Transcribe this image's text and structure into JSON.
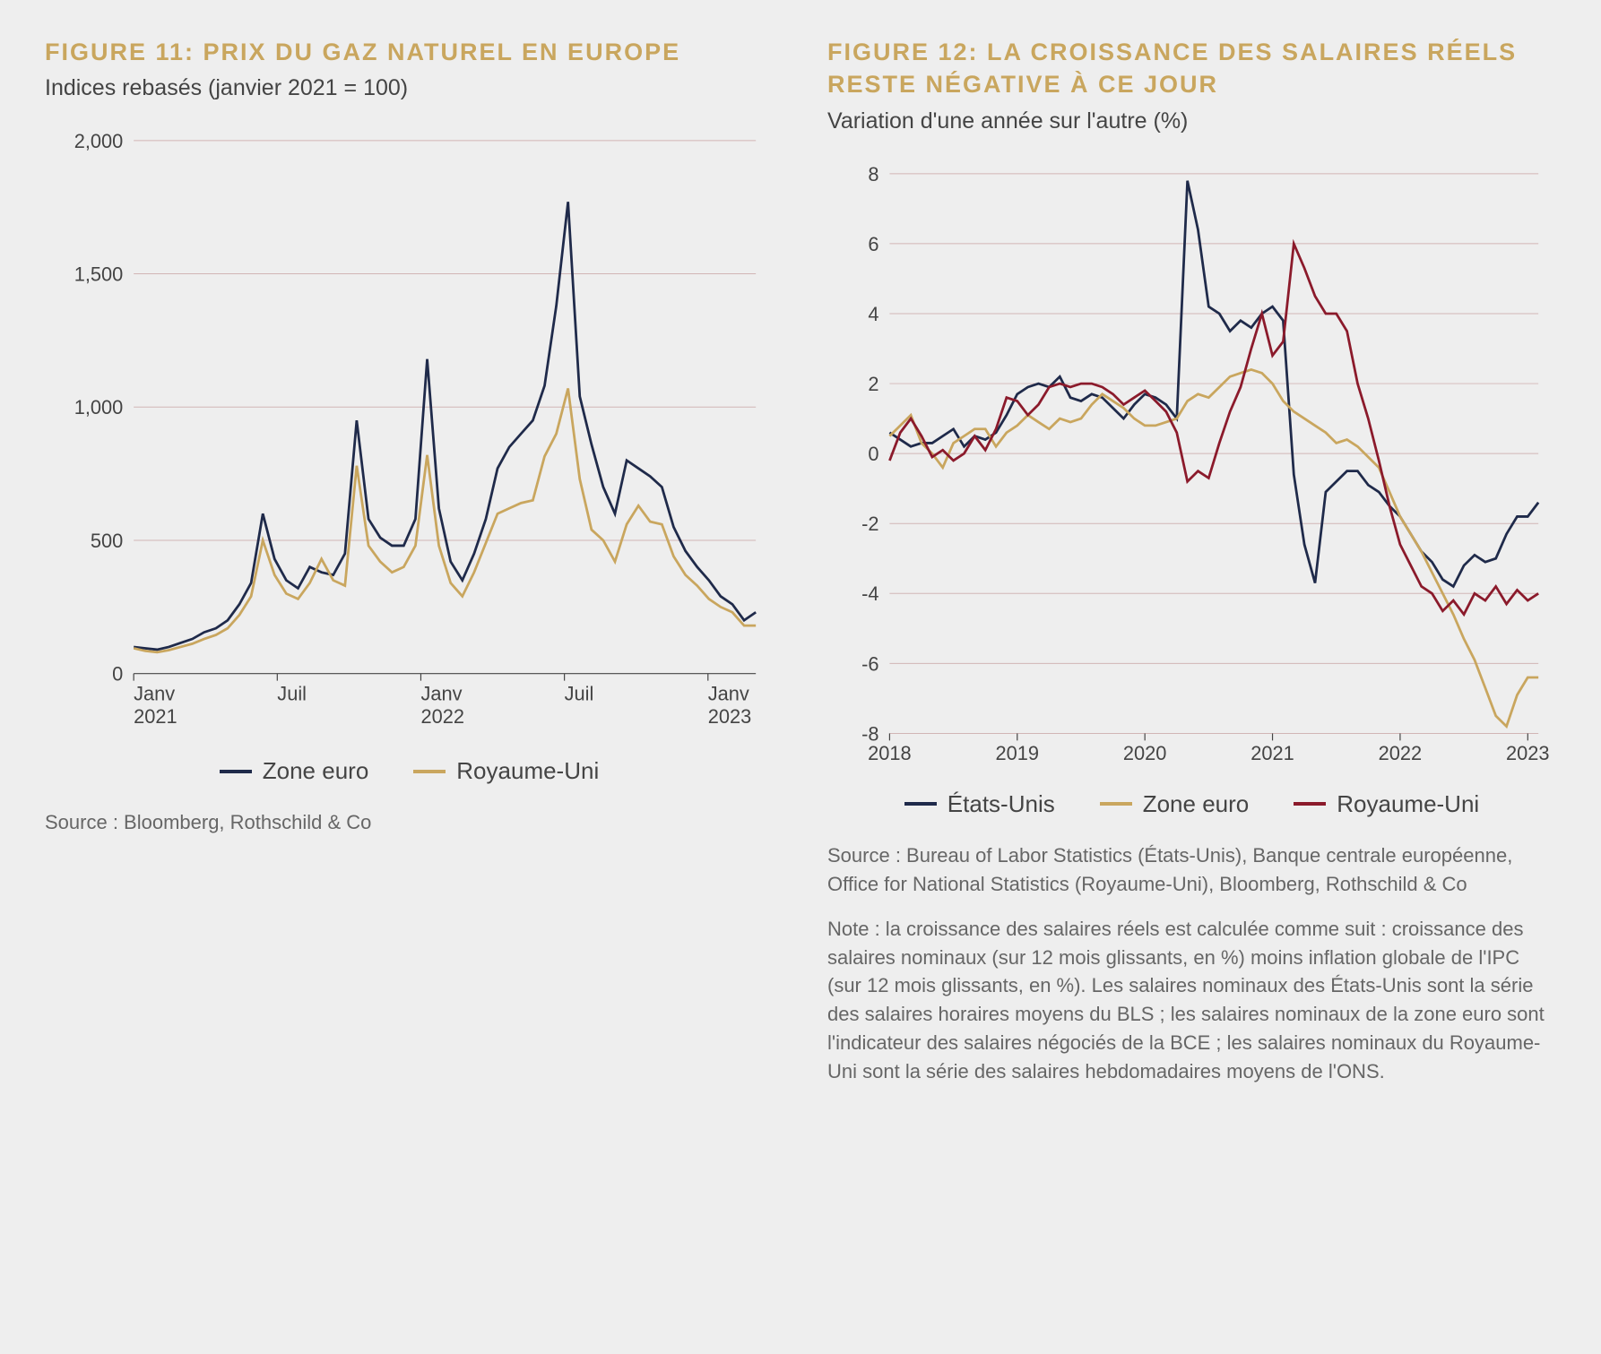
{
  "background_color": "#eeeeee",
  "fig11": {
    "title": "FIGURE 11: PRIX DU GAZ NATUREL EN EUROPE",
    "subtitle": "Indices rebasés (janvier 2021 = 100)",
    "type": "line",
    "ylim": [
      0,
      2000
    ],
    "ytick_step": 500,
    "ytick_labels": [
      "0",
      "500",
      "1,000",
      "1,500",
      "2,000"
    ],
    "x_ticks": [
      0,
      6,
      12,
      18,
      24
    ],
    "x_labels": [
      "Janv\n2021",
      "Juil",
      "Janv\n2022",
      "Juil",
      "Janv\n2023"
    ],
    "x_count": 27,
    "grid_color": "#b88888",
    "text_color": "#444444",
    "series": [
      {
        "name": "Zone euro",
        "color": "#1f2a4a",
        "values": [
          100,
          95,
          90,
          100,
          115,
          130,
          155,
          170,
          200,
          260,
          340,
          600,
          430,
          350,
          320,
          400,
          380,
          370,
          450,
          950,
          580,
          510,
          480,
          480,
          580,
          1180,
          620,
          420,
          350,
          450,
          580,
          770,
          850,
          900,
          950,
          1080,
          1380,
          1770,
          1040,
          860,
          700,
          600,
          800,
          770,
          740,
          700,
          550,
          460,
          400,
          350,
          290,
          260,
          200,
          230
        ]
      },
      {
        "name": "Royaume-Uni",
        "color": "#c9a65e",
        "values": [
          95,
          85,
          80,
          88,
          100,
          112,
          130,
          145,
          170,
          220,
          290,
          500,
          370,
          300,
          280,
          340,
          430,
          350,
          330,
          780,
          480,
          420,
          380,
          400,
          480,
          820,
          480,
          340,
          290,
          380,
          490,
          600,
          620,
          640,
          650,
          815,
          900,
          1070,
          730,
          540,
          500,
          420,
          560,
          630,
          570,
          560,
          440,
          370,
          330,
          280,
          250,
          230,
          180,
          180
        ]
      }
    ],
    "legend": [
      "Zone euro",
      "Royaume-Uni"
    ],
    "source": "Source :  Bloomberg, Rothschild & Co"
  },
  "fig12": {
    "title": "FIGURE 12: LA CROISSANCE DES SALAIRES RÉELS RESTE NÉGATIVE À CE JOUR",
    "subtitle": "Variation d'une année sur l'autre (%)",
    "type": "line",
    "ylim": [
      -8,
      8
    ],
    "ytick_step": 2,
    "ytick_labels": [
      "-8",
      "-6",
      "-4",
      "-2",
      "0",
      "2",
      "4",
      "6",
      "8"
    ],
    "x_ticks": [
      0,
      12,
      24,
      36,
      48,
      60
    ],
    "x_labels": [
      "2018",
      "2019",
      "2020",
      "2021",
      "2022",
      "2023"
    ],
    "x_count": 62,
    "grid_color": "#b88888",
    "text_color": "#444444",
    "series": [
      {
        "name": "États-Unis",
        "color": "#1f2a4a",
        "values": [
          0.6,
          0.4,
          0.2,
          0.3,
          0.3,
          0.5,
          0.7,
          0.2,
          0.5,
          0.4,
          0.6,
          1.1,
          1.7,
          1.9,
          2.0,
          1.9,
          2.2,
          1.6,
          1.5,
          1.7,
          1.6,
          1.3,
          1.0,
          1.4,
          1.7,
          1.6,
          1.4,
          1.0,
          7.8,
          6.4,
          4.2,
          4.0,
          3.5,
          3.8,
          3.6,
          4.0,
          4.2,
          3.8,
          -0.6,
          -2.6,
          -3.7,
          -1.1,
          -0.8,
          -0.5,
          -0.5,
          -0.9,
          -1.1,
          -1.5,
          -1.8,
          -2.3,
          -2.8,
          -3.1,
          -3.6,
          -3.8,
          -3.2,
          -2.9,
          -3.1,
          -3.0,
          -2.3,
          -1.8,
          -1.8,
          -1.4
        ]
      },
      {
        "name": "Zone euro",
        "color": "#c9a65e",
        "values": [
          0.5,
          0.8,
          1.1,
          0.3,
          0.0,
          -0.4,
          0.3,
          0.5,
          0.7,
          0.7,
          0.2,
          0.6,
          0.8,
          1.1,
          0.9,
          0.7,
          1.0,
          0.9,
          1.0,
          1.4,
          1.7,
          1.5,
          1.3,
          1.0,
          0.8,
          0.8,
          0.9,
          1.0,
          1.5,
          1.7,
          1.6,
          1.9,
          2.2,
          2.3,
          2.4,
          2.3,
          2.0,
          1.5,
          1.2,
          1.0,
          0.8,
          0.6,
          0.3,
          0.4,
          0.2,
          -0.1,
          -0.4,
          -1.1,
          -1.8,
          -2.3,
          -2.8,
          -3.4,
          -4.0,
          -4.6,
          -5.3,
          -5.9,
          -6.7,
          -7.5,
          -7.8,
          -6.9,
          -6.4,
          -6.4
        ]
      },
      {
        "name": "Royaume-Uni",
        "color": "#8b1a2b",
        "values": [
          -0.2,
          0.6,
          1.0,
          0.5,
          -0.1,
          0.1,
          -0.2,
          0.0,
          0.5,
          0.1,
          0.7,
          1.6,
          1.5,
          1.1,
          1.4,
          1.9,
          2.0,
          1.9,
          2.0,
          2.0,
          1.9,
          1.7,
          1.4,
          1.6,
          1.8,
          1.5,
          1.2,
          0.6,
          -0.8,
          -0.5,
          -0.7,
          0.3,
          1.2,
          1.9,
          3.0,
          4.0,
          2.8,
          3.2,
          6.0,
          5.3,
          4.5,
          4.0,
          4.0,
          3.5,
          2.0,
          1.0,
          -0.2,
          -1.5,
          -2.6,
          -3.2,
          -3.8,
          -4.0,
          -4.5,
          -4.2,
          -4.6,
          -4.0,
          -4.2,
          -3.8,
          -4.3,
          -3.9,
          -4.2,
          -4.0
        ]
      }
    ],
    "legend": [
      "États-Unis",
      "Zone euro",
      "Royaume-Uni"
    ],
    "source": "Source : Bureau of Labor Statistics (États-Unis), Banque centrale européenne, Office for National Statistics (Royaume-Uni), Bloomberg, Rothschild & Co",
    "note": "Note : la croissance des salaires réels est calculée comme suit : croissance des salaires nominaux (sur 12 mois glissants, en %) moins inflation globale de l'IPC (sur 12 mois glissants, en %). Les salaires nominaux des États-Unis sont la série des salaires horaires moyens du BLS ; les salaires nominaux de la zone euro sont l'indicateur des salaires négociés de la BCE ; les salaires nominaux du Royaume-Uni sont la série des salaires hebdomadaires moyens de l'ONS."
  }
}
